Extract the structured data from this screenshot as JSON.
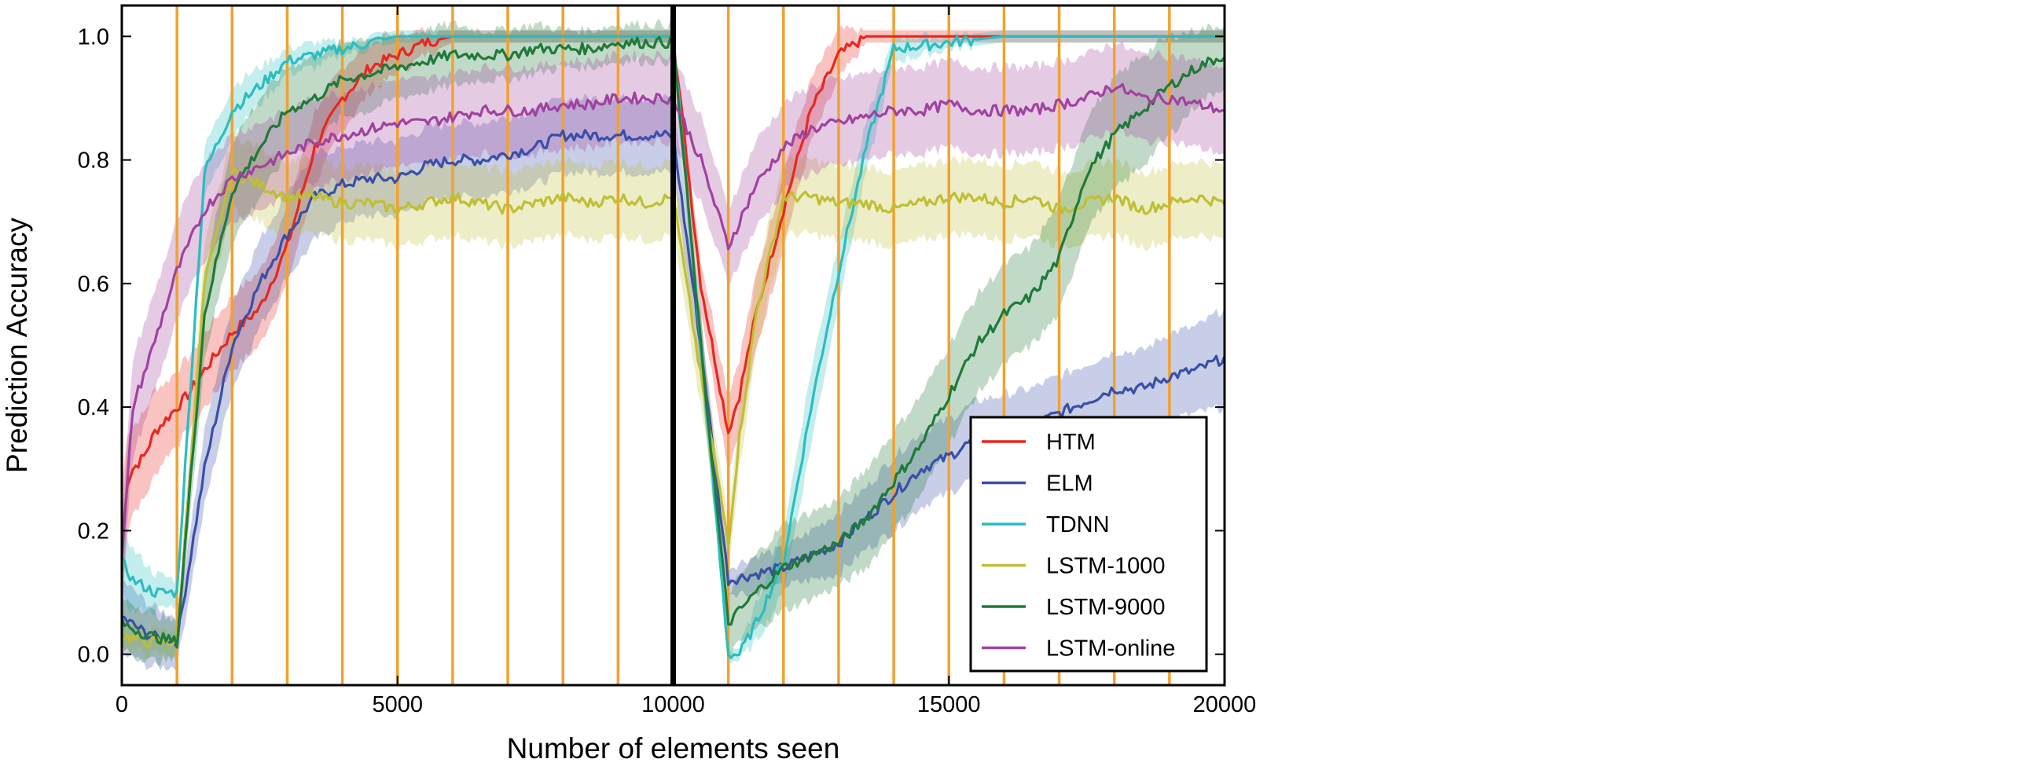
{
  "chart_data": {
    "type": "line",
    "title": "",
    "xlabel": "Number of elements seen",
    "ylabel": "Prediction Accuracy",
    "xlim": [
      0,
      20000
    ],
    "ylim": [
      -0.05,
      1.05
    ],
    "x_ticks": [
      0,
      5000,
      10000,
      15000,
      20000
    ],
    "x_tick_labels": [
      "0",
      "5000",
      "10000",
      "15000",
      "20000"
    ],
    "y_ticks": [
      0.0,
      0.2,
      0.4,
      0.6,
      0.8,
      1.0
    ],
    "y_tick_labels": [
      "0.0",
      "0.2",
      "0.4",
      "0.6",
      "0.8",
      "1.0"
    ],
    "grid": false,
    "legend_position": "lower-right",
    "vertical_markers": {
      "color": "#f2a12e",
      "x": [
        1000,
        2000,
        3000,
        4000,
        5000,
        6000,
        7000,
        8000,
        9000,
        11000,
        12000,
        13000,
        14000,
        15000,
        16000,
        17000,
        18000,
        19000
      ]
    },
    "divider": {
      "x": 10000,
      "color": "#000000"
    },
    "series": [
      {
        "name": "HTM",
        "color": "#e8271f",
        "x": [
          0,
          100,
          200,
          400,
          600,
          800,
          1000,
          1200,
          1500,
          2000,
          2500,
          3000,
          3500,
          4000,
          4500,
          5000,
          5500,
          6000,
          10000,
          10500,
          11000,
          11200,
          11500,
          12000,
          12500,
          13000,
          13500,
          15000,
          20000
        ],
        "y": [
          0.17,
          0.28,
          0.3,
          0.32,
          0.36,
          0.38,
          0.4,
          0.42,
          0.46,
          0.52,
          0.56,
          0.66,
          0.82,
          0.9,
          0.95,
          0.97,
          0.99,
          1.0,
          1.0,
          0.6,
          0.36,
          0.42,
          0.55,
          0.72,
          0.88,
          0.97,
          1.0,
          1.0,
          1.0
        ],
        "band": [
          0.1,
          0.08,
          0.07,
          0.07,
          0.07,
          0.06,
          0.06,
          0.06,
          0.06,
          0.06,
          0.06,
          0.06,
          0.06,
          0.05,
          0.04,
          0.03,
          0.02,
          0.01,
          0.01,
          0.04,
          0.06,
          0.06,
          0.06,
          0.06,
          0.05,
          0.04,
          0.01,
          0.01,
          0.01
        ]
      },
      {
        "name": "ELM",
        "color": "#3a4fa8",
        "x": [
          0,
          500,
          1000,
          1500,
          2000,
          2500,
          3000,
          3500,
          4000,
          4500,
          5000,
          5500,
          6000,
          6500,
          7000,
          7500,
          8000,
          8500,
          9000,
          9500,
          10000,
          10500,
          11000,
          11500,
          12000,
          12500,
          13000,
          13500,
          14000,
          14500,
          15000,
          15500,
          16000,
          16500,
          17000,
          17500,
          18000,
          18500,
          19000,
          19500,
          20000
        ],
        "y": [
          0.06,
          0.03,
          0.02,
          0.3,
          0.5,
          0.6,
          0.68,
          0.74,
          0.76,
          0.77,
          0.77,
          0.79,
          0.8,
          0.8,
          0.81,
          0.82,
          0.84,
          0.84,
          0.84,
          0.84,
          0.84,
          0.5,
          0.12,
          0.13,
          0.14,
          0.16,
          0.18,
          0.22,
          0.26,
          0.3,
          0.32,
          0.35,
          0.36,
          0.37,
          0.39,
          0.41,
          0.43,
          0.43,
          0.45,
          0.46,
          0.48
        ],
        "band": [
          0.06,
          0.05,
          0.04,
          0.06,
          0.07,
          0.07,
          0.07,
          0.07,
          0.06,
          0.06,
          0.06,
          0.06,
          0.06,
          0.06,
          0.06,
          0.06,
          0.06,
          0.06,
          0.06,
          0.06,
          0.06,
          0.05,
          0.02,
          0.03,
          0.03,
          0.04,
          0.05,
          0.05,
          0.06,
          0.06,
          0.06,
          0.06,
          0.06,
          0.06,
          0.06,
          0.06,
          0.06,
          0.06,
          0.07,
          0.07,
          0.08
        ]
      },
      {
        "name": "TDNN",
        "color": "#2bbdc0",
        "x": [
          0,
          200,
          600,
          1000,
          1500,
          2000,
          2500,
          3000,
          3500,
          4000,
          4500,
          5000,
          10000,
          10500,
          11000,
          11200,
          11500,
          12000,
          12500,
          13000,
          13500,
          14000,
          15000,
          16000,
          17000,
          20000
        ],
        "y": [
          0.15,
          0.12,
          0.1,
          0.1,
          0.78,
          0.88,
          0.92,
          0.96,
          0.97,
          0.98,
          0.99,
          1.0,
          1.0,
          0.5,
          0.0,
          0.0,
          0.05,
          0.15,
          0.4,
          0.62,
          0.82,
          0.98,
          0.99,
          1.0,
          1.0,
          1.0
        ],
        "band": [
          0.06,
          0.05,
          0.03,
          0.02,
          0.04,
          0.04,
          0.03,
          0.02,
          0.02,
          0.01,
          0.01,
          0.01,
          0.01,
          0.03,
          0.01,
          0.01,
          0.03,
          0.05,
          0.06,
          0.05,
          0.04,
          0.02,
          0.01,
          0.01,
          0.01,
          0.01
        ]
      },
      {
        "name": "LSTM-1000",
        "color": "#bfbf35",
        "x": [
          0,
          500,
          1000,
          1500,
          2000,
          2500,
          3000,
          3500,
          4000,
          4500,
          5000,
          5500,
          6000,
          6500,
          7000,
          7500,
          8000,
          8500,
          9000,
          9500,
          10000,
          10500,
          11000,
          11200,
          11500,
          12000,
          12500,
          13000,
          13500,
          14000,
          14500,
          15000,
          15500,
          16000,
          16500,
          17000,
          17500,
          18000,
          18500,
          19000,
          19500,
          20000
        ],
        "y": [
          0.03,
          0.02,
          0.02,
          0.6,
          0.78,
          0.76,
          0.74,
          0.74,
          0.73,
          0.73,
          0.72,
          0.73,
          0.74,
          0.73,
          0.72,
          0.73,
          0.74,
          0.73,
          0.74,
          0.73,
          0.74,
          0.45,
          0.18,
          0.35,
          0.55,
          0.74,
          0.74,
          0.73,
          0.73,
          0.72,
          0.73,
          0.74,
          0.74,
          0.73,
          0.74,
          0.72,
          0.73,
          0.74,
          0.72,
          0.73,
          0.74,
          0.73
        ],
        "band": [
          0.02,
          0.02,
          0.02,
          0.06,
          0.06,
          0.06,
          0.06,
          0.06,
          0.06,
          0.06,
          0.06,
          0.06,
          0.06,
          0.06,
          0.06,
          0.06,
          0.06,
          0.06,
          0.06,
          0.06,
          0.06,
          0.05,
          0.04,
          0.05,
          0.06,
          0.06,
          0.06,
          0.06,
          0.06,
          0.06,
          0.06,
          0.06,
          0.06,
          0.06,
          0.06,
          0.06,
          0.06,
          0.06,
          0.06,
          0.06,
          0.06,
          0.06
        ]
      },
      {
        "name": "LSTM-9000",
        "color": "#1f7a3a",
        "x": [
          0,
          500,
          1000,
          1500,
          2000,
          2500,
          3000,
          3500,
          4000,
          4500,
          5000,
          5500,
          6000,
          6500,
          7000,
          7500,
          8000,
          8500,
          9000,
          9500,
          10000,
          10500,
          11000,
          11500,
          12000,
          12500,
          13000,
          13500,
          14000,
          14500,
          15000,
          15500,
          16000,
          16500,
          17000,
          17500,
          18000,
          18500,
          19000,
          19500,
          20000
        ],
        "y": [
          0.05,
          0.03,
          0.02,
          0.55,
          0.75,
          0.82,
          0.88,
          0.9,
          0.93,
          0.94,
          0.95,
          0.96,
          0.97,
          0.97,
          0.97,
          0.98,
          0.98,
          0.98,
          0.99,
          0.99,
          0.99,
          0.5,
          0.05,
          0.1,
          0.14,
          0.16,
          0.18,
          0.22,
          0.28,
          0.34,
          0.42,
          0.5,
          0.55,
          0.58,
          0.64,
          0.78,
          0.84,
          0.88,
          0.92,
          0.95,
          0.97
        ],
        "band": [
          0.04,
          0.04,
          0.03,
          0.07,
          0.08,
          0.08,
          0.07,
          0.07,
          0.06,
          0.06,
          0.05,
          0.05,
          0.05,
          0.04,
          0.04,
          0.04,
          0.03,
          0.03,
          0.03,
          0.03,
          0.03,
          0.05,
          0.05,
          0.06,
          0.07,
          0.07,
          0.07,
          0.08,
          0.08,
          0.08,
          0.08,
          0.08,
          0.08,
          0.08,
          0.09,
          0.09,
          0.09,
          0.09,
          0.08,
          0.06,
          0.05
        ]
      },
      {
        "name": "LSTM-online",
        "color": "#a0429f",
        "x": [
          0,
          200,
          500,
          1000,
          1500,
          2000,
          2500,
          3000,
          3500,
          4000,
          4500,
          5000,
          5500,
          6000,
          6500,
          7000,
          7500,
          8000,
          8500,
          9000,
          9500,
          10000,
          10500,
          11000,
          11500,
          12000,
          12500,
          13000,
          13500,
          14000,
          14500,
          15000,
          15500,
          16000,
          16500,
          17000,
          17500,
          18000,
          18500,
          19000,
          19500,
          20000
        ],
        "y": [
          0.15,
          0.4,
          0.48,
          0.62,
          0.72,
          0.77,
          0.79,
          0.81,
          0.83,
          0.84,
          0.85,
          0.86,
          0.86,
          0.87,
          0.88,
          0.88,
          0.88,
          0.89,
          0.89,
          0.9,
          0.9,
          0.9,
          0.8,
          0.66,
          0.76,
          0.82,
          0.85,
          0.86,
          0.87,
          0.88,
          0.88,
          0.89,
          0.88,
          0.88,
          0.88,
          0.89,
          0.9,
          0.92,
          0.9,
          0.9,
          0.89,
          0.88
        ],
        "band": [
          0.06,
          0.08,
          0.08,
          0.08,
          0.08,
          0.07,
          0.07,
          0.07,
          0.07,
          0.07,
          0.07,
          0.07,
          0.07,
          0.07,
          0.07,
          0.07,
          0.07,
          0.07,
          0.07,
          0.07,
          0.07,
          0.07,
          0.07,
          0.06,
          0.07,
          0.07,
          0.07,
          0.07,
          0.07,
          0.07,
          0.07,
          0.07,
          0.07,
          0.07,
          0.07,
          0.07,
          0.07,
          0.07,
          0.07,
          0.07,
          0.07,
          0.07
        ]
      }
    ]
  }
}
